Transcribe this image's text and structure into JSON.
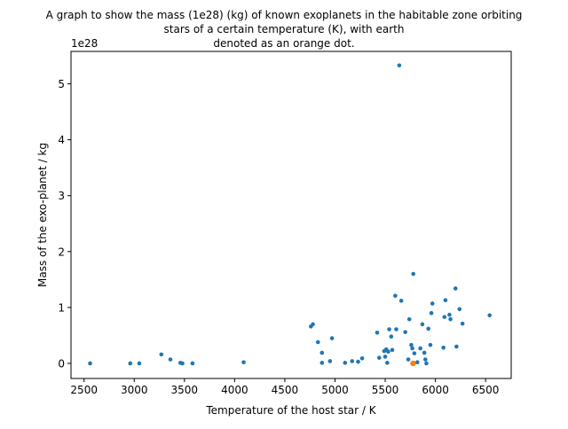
{
  "chart_data": {
    "type": "scatter",
    "title_lines": [
      "A graph to show the mass (1e28) (kg) of known exoplanets in the habitable zone orbiting",
      "stars of a certain temperature (K), with earth",
      "denoted as an orange dot."
    ],
    "xlabel": "Temperature of the host star / K",
    "ylabel": "Mass of the exo-planet / kg",
    "y_offset_label": "1e28",
    "xlim": [
      2370,
      6755
    ],
    "ylim": [
      -0.27,
      5.58
    ],
    "x_ticks": [
      2500,
      3000,
      3500,
      4000,
      4500,
      5000,
      5500,
      6000,
      6500
    ],
    "y_ticks": [
      0,
      1,
      2,
      3,
      4,
      5
    ],
    "colors": {
      "exoplanets": "#1f77b4",
      "earth": "#ff7f0e"
    },
    "series": [
      {
        "key": "exoplanets",
        "points": [
          [
            2560,
            0.0
          ],
          [
            2960,
            0.0
          ],
          [
            3050,
            0.0
          ],
          [
            3270,
            0.16
          ],
          [
            3360,
            0.07
          ],
          [
            3460,
            0.01
          ],
          [
            3480,
            0.0
          ],
          [
            3580,
            0.0
          ],
          [
            4090,
            0.02
          ],
          [
            4760,
            0.66
          ],
          [
            4780,
            0.7
          ],
          [
            4830,
            0.38
          ],
          [
            4870,
            0.19
          ],
          [
            4870,
            0.01
          ],
          [
            4950,
            0.04
          ],
          [
            4970,
            0.45
          ],
          [
            5100,
            0.01
          ],
          [
            5170,
            0.04
          ],
          [
            5230,
            0.03
          ],
          [
            5270,
            0.09
          ],
          [
            5420,
            0.55
          ],
          [
            5440,
            0.1
          ],
          [
            5490,
            0.22
          ],
          [
            5500,
            0.12
          ],
          [
            5510,
            0.25
          ],
          [
            5520,
            0.01
          ],
          [
            5530,
            0.21
          ],
          [
            5540,
            0.61
          ],
          [
            5560,
            0.48
          ],
          [
            5570,
            0.24
          ],
          [
            5600,
            1.21
          ],
          [
            5610,
            0.61
          ],
          [
            5640,
            5.33
          ],
          [
            5660,
            1.12
          ],
          [
            5700,
            0.56
          ],
          [
            5730,
            0.07
          ],
          [
            5740,
            0.79
          ],
          [
            5760,
            0.33
          ],
          [
            5770,
            0.27
          ],
          [
            5780,
            1.6
          ],
          [
            5790,
            0.18
          ],
          [
            5820,
            0.02
          ],
          [
            5850,
            0.27
          ],
          [
            5870,
            0.7
          ],
          [
            5890,
            0.19
          ],
          [
            5900,
            0.07
          ],
          [
            5910,
            0.0
          ],
          [
            5930,
            0.62
          ],
          [
            5950,
            0.33
          ],
          [
            5960,
            0.9
          ],
          [
            5970,
            1.07
          ],
          [
            6080,
            0.28
          ],
          [
            6090,
            0.83
          ],
          [
            6100,
            1.13
          ],
          [
            6140,
            0.87
          ],
          [
            6150,
            0.79
          ],
          [
            6200,
            1.34
          ],
          [
            6210,
            0.3
          ],
          [
            6240,
            0.97
          ],
          [
            6270,
            0.71
          ],
          [
            6540,
            0.86
          ]
        ]
      },
      {
        "key": "earth",
        "points": [
          [
            5778,
            0.0
          ]
        ]
      }
    ]
  }
}
